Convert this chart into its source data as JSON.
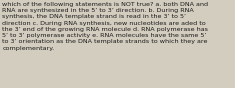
{
  "text": "which of the following statements is NOT true? a. both DNA and\nRNA are synthesized in the 5’ to 3’ direction. b. During RNA\nsynthesis, the DNA template strand is read in the 3’ to 5’\ndirection c. During RNA synthesis, new nucleotides are aded to\nthe 3’ end of the growing RNA molecule d. RNA polymerase has\n5’ to 3’ polymerase activity e. RNA molecules have the same 5’\nto 3’ orientation as the DNA template strands to which they are\ncomplementary.",
  "background_color": "#d3cdc0",
  "text_color": "#1a1a1a",
  "font_size": 4.6,
  "fig_width": 2.35,
  "fig_height": 0.88,
  "dpi": 100
}
